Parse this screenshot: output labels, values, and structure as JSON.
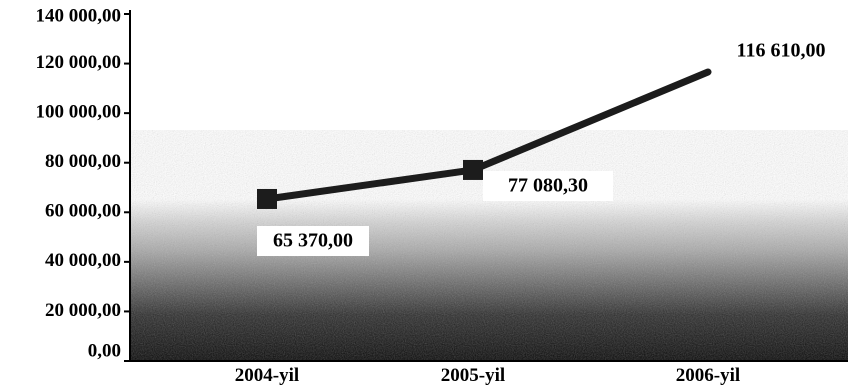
{
  "chart_data": {
    "type": "line",
    "categories": [
      "2004-yil",
      "2005-yil",
      "2006-yil"
    ],
    "series": [
      {
        "values": [
          65370.0,
          77080.3,
          116610.0
        ],
        "data_labels": [
          "65 370,00",
          "77 080,30",
          "116 610,00"
        ]
      }
    ],
    "y_ticks": [
      0,
      20000,
      40000,
      60000,
      80000,
      100000,
      120000,
      140000
    ],
    "y_tick_labels": [
      "0,00",
      "20 000,00",
      "40 000,00",
      "60 000,00",
      "80 000,00",
      "100 000,00",
      "120 000,00",
      "140 000,00"
    ],
    "ylim": [
      0,
      140000
    ],
    "grid": false,
    "legend": "none",
    "colors": {
      "line": "#1c1c1c",
      "marker": "#1c1c1c",
      "background_top": "#ffffff",
      "background_mid": "#a9a9a9",
      "background_bottom": "#050505"
    }
  }
}
